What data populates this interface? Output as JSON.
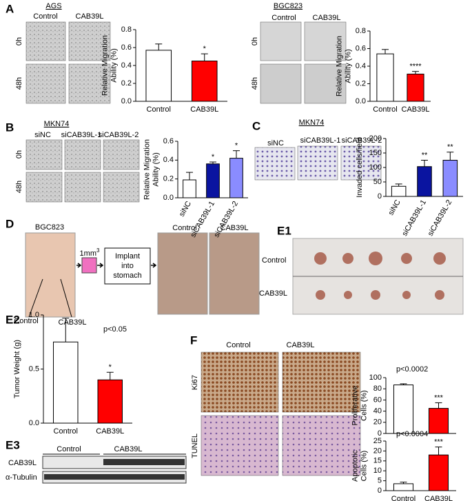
{
  "panels": {
    "A": {
      "letter": "A",
      "left_title": "AGS",
      "right_title": "BGC823",
      "left_cols": [
        "Control",
        "CAB39L"
      ],
      "right_cols": [
        "Control",
        "CAB39L"
      ],
      "rows": [
        "0h",
        "48h"
      ]
    },
    "B": {
      "letter": "B",
      "title": "MKN74",
      "cols": [
        "siNC",
        "siCAB39L-1",
        "siCAB39L-2"
      ],
      "rows": [
        "0h",
        "48h"
      ]
    },
    "C": {
      "letter": "C",
      "title": "MKN74",
      "cols": [
        "siNC",
        "siCAB39L-1",
        "siCAB39L-2"
      ]
    },
    "D": {
      "letter": "D",
      "mouse": "BGC823",
      "mouse_labels": [
        "Control",
        "CAB39L"
      ],
      "size": "1mm",
      "size_sup": "3",
      "box_lines": [
        "Implant",
        "into",
        "stomach"
      ],
      "cols": [
        "Control",
        "CAB39L"
      ]
    },
    "E1": {
      "letter": "E1",
      "rows": [
        "Control",
        "CAB39L"
      ]
    },
    "E2": {
      "letter": "E2"
    },
    "E3": {
      "letter": "E3",
      "groups": [
        "Control",
        "CAB39L"
      ],
      "rows": [
        "CAB39L",
        "α-Tubulin"
      ]
    },
    "F": {
      "letter": "F",
      "cols": [
        "Control",
        "CAB39L"
      ],
      "rows": [
        "Ki67",
        "TUNEL"
      ]
    }
  },
  "chart_data": [
    {
      "type": "bar",
      "ylabel": [
        "Relative  Migration",
        "Ability (%)"
      ],
      "categories": [
        "Control",
        "CAB39L"
      ],
      "values": [
        0.57,
        0.45
      ],
      "errors": [
        0.07,
        0.08
      ],
      "colors": [
        "#ffffff",
        "#ff0000"
      ],
      "significance": [
        null,
        "*"
      ],
      "ylim": [
        0,
        0.8
      ],
      "yticks": [
        {
          "value": 0,
          "label": "0.0"
        },
        0.2,
        0.4,
        0.6,
        0.8
      ]
    },
    {
      "type": "bar",
      "ylabel": [
        "Relative  Migration",
        "Ability (%)"
      ],
      "categories": [
        "Control",
        "CAB39L"
      ],
      "values": [
        0.54,
        0.31
      ],
      "errors": [
        0.05,
        0.03
      ],
      "colors": [
        "#ffffff",
        "#ff0000"
      ],
      "significance": [
        null,
        "****"
      ],
      "ylim": [
        0,
        0.8
      ],
      "yticks": [
        {
          "value": 0,
          "label": "0.0"
        },
        0.2,
        0.4,
        0.6,
        0.8
      ]
    },
    {
      "type": "bar",
      "ylabel": [
        "Relative  Migration",
        "Ability (%)"
      ],
      "categories": [
        "siNC",
        "siCAB39L-1",
        "siCAB39L-2"
      ],
      "values": [
        0.19,
        0.36,
        0.42
      ],
      "errors": [
        0.08,
        0.02,
        0.08
      ],
      "colors": [
        "#ffffff",
        "#0a14a0",
        "#8a8cff"
      ],
      "significance": [
        null,
        "*",
        "*"
      ],
      "rotate_labels": true,
      "ylim": [
        0,
        0.6
      ],
      "yticks": [
        {
          "value": 0,
          "label": "0.0"
        },
        0.2,
        0.4,
        0.6
      ]
    },
    {
      "type": "bar",
      "ylabel": [
        "Invaded  cells/field"
      ],
      "categories": [
        "siNC",
        "siCAB39L-1",
        "siCAB39L-2"
      ],
      "values": [
        35,
        103,
        125
      ],
      "errors": [
        8,
        22,
        28
      ],
      "colors": [
        "#ffffff",
        "#0a14a0",
        "#8a8cff"
      ],
      "significance": [
        null,
        "**",
        "**"
      ],
      "rotate_labels": true,
      "ylim": [
        0,
        200
      ],
      "yticks": [
        0,
        50,
        100,
        150,
        200
      ]
    },
    {
      "type": "bar",
      "ylabel": [
        "Tumor Weight (g)"
      ],
      "categories": [
        "Control",
        "CAB39L"
      ],
      "values": [
        0.75,
        0.4
      ],
      "errors": [
        0.22,
        0.07
      ],
      "colors": [
        "#ffffff",
        "#ff0000"
      ],
      "significance": [
        null,
        "*"
      ],
      "annotation": "p<0.05",
      "ylim": [
        0,
        1.0
      ],
      "yticks": [
        {
          "value": 0,
          "label": "0.0"
        },
        0.5,
        {
          "value": 1,
          "label": "1.0"
        }
      ]
    },
    {
      "type": "bar",
      "ylabel": [
        "Proliferative",
        "Cells (%)"
      ],
      "categories": [
        "Control",
        "CAB39L"
      ],
      "values": [
        87,
        45
      ],
      "errors": [
        2,
        10
      ],
      "colors": [
        "#ffffff",
        "#ff0000"
      ],
      "significance": [
        null,
        "***"
      ],
      "annotation": "p<0.0002",
      "hide_categories": true,
      "ylim": [
        0,
        100
      ],
      "yticks": [
        0,
        20,
        40,
        60,
        80,
        100
      ]
    },
    {
      "type": "bar",
      "ylabel": [
        "Apoptotic",
        "Cells (%)"
      ],
      "categories": [
        "Control",
        "CAB39L"
      ],
      "values": [
        3.5,
        18
      ],
      "errors": [
        0.8,
        4
      ],
      "colors": [
        "#ffffff",
        "#ff0000"
      ],
      "significance": [
        null,
        "***"
      ],
      "annotation": "p<0.0004",
      "ylim": [
        0,
        25
      ],
      "yticks": [
        0,
        5,
        10,
        15,
        20,
        25
      ]
    }
  ]
}
